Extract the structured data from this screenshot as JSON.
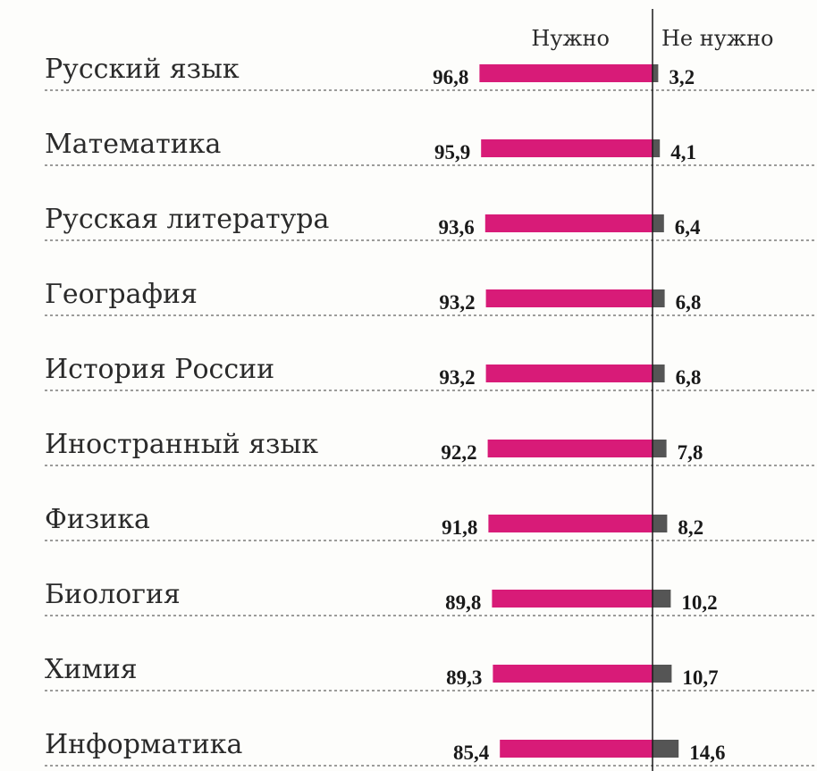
{
  "chart_data": {
    "type": "bar",
    "orientation": "horizontal-diverging",
    "series": [
      {
        "name": "Нужно",
        "color": "#d81b78",
        "values": [
          96.8,
          95.9,
          93.6,
          93.2,
          93.2,
          92.2,
          91.8,
          89.8,
          89.3,
          85.4
        ],
        "labels": [
          "96,8",
          "95,9",
          "93,6",
          "93,2",
          "93,2",
          "92,2",
          "91,8",
          "89,8",
          "89,3",
          "85,4"
        ]
      },
      {
        "name": "Не нужно",
        "color": "#555555",
        "values": [
          3.2,
          4.1,
          6.4,
          6.8,
          6.8,
          7.8,
          8.2,
          10.2,
          10.7,
          14.6
        ],
        "labels": [
          "3,2",
          "4,1",
          "6,4",
          "6,8",
          "6,8",
          "7,8",
          "8,2",
          "10,2",
          "10,7",
          "14,6"
        ]
      }
    ],
    "categories": [
      "Русский язык",
      "Математика",
      "Русская литература",
      "География",
      "История России",
      "Иностранный язык",
      "Физика",
      "Биология",
      "Химия",
      "Информатика"
    ],
    "legend_position": "top",
    "grid": false
  }
}
